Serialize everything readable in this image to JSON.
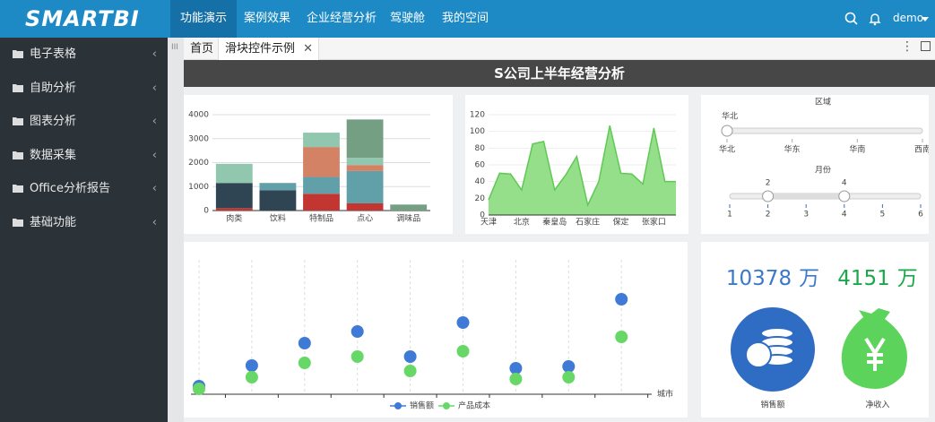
{
  "header": {
    "logo": "SMARTBI",
    "nav": [
      "功能演示",
      "案例效果",
      "企业经营分析",
      "驾驶舱",
      "我的空间"
    ],
    "user": "demo"
  },
  "sidebar": [
    "电子表格",
    "自助分析",
    "图表分析",
    "数据采集",
    "Office分析报告",
    "基础功能"
  ],
  "tabs": [
    "首页",
    "滑块控件示例"
  ],
  "page_title": "S公司上半年经营分析",
  "chart_data": [
    {
      "type": "bar",
      "stacked": true,
      "categories": [
        "肉类",
        "饮料",
        "特制品",
        "点心",
        "调味品"
      ],
      "series": [
        {
          "color": "#c23531",
          "values": [
            100,
            0,
            700,
            300,
            0
          ]
        },
        {
          "color": "#2f4554",
          "values": [
            1050,
            850,
            0,
            0,
            0
          ]
        },
        {
          "color": "#61a0a8",
          "values": [
            0,
            300,
            700,
            1350,
            0
          ]
        },
        {
          "color": "#d48265",
          "values": [
            0,
            0,
            1250,
            250,
            0
          ]
        },
        {
          "color": "#91c7ae",
          "values": [
            800,
            0,
            600,
            300,
            0
          ]
        },
        {
          "color": "#749f83",
          "values": [
            0,
            0,
            0,
            1600,
            250
          ]
        }
      ],
      "ylim": [
        0,
        4000
      ],
      "yticks": [
        0,
        1000,
        2000,
        3000,
        4000
      ],
      "grid": true
    },
    {
      "type": "area",
      "categories": [
        "天津",
        null,
        null,
        "北京",
        null,
        null,
        "秦皇岛",
        null,
        null,
        "石家庄",
        null,
        null,
        "保定",
        null,
        null,
        "张家口",
        null,
        null
      ],
      "values": [
        18,
        50,
        49,
        30,
        85,
        88,
        30,
        48,
        70,
        12,
        40,
        107,
        50,
        49,
        37,
        104,
        40,
        40
      ],
      "color": "#8fdc84",
      "ylim": [
        0,
        120
      ],
      "yticks": [
        0,
        20,
        40,
        60,
        80,
        100,
        120
      ],
      "grid": true
    },
    {
      "type": "scatter",
      "categories": [
        null,
        null,
        null,
        null,
        null,
        null,
        null,
        null,
        null
      ],
      "xlabel": "城市",
      "series": [
        {
          "name": "销售额",
          "color": "#3f7bd6",
          "values": [
            9,
            32,
            57,
            70,
            42,
            80,
            29,
            31,
            106
          ]
        },
        {
          "name": "产品成本",
          "color": "#67d867",
          "values": [
            6,
            19,
            35,
            42,
            26,
            48,
            17,
            19,
            64
          ]
        }
      ],
      "ylim": [
        0,
        150
      ],
      "grid": true
    }
  ],
  "sliders": {
    "region": {
      "title": "区域",
      "value": "华北",
      "options": [
        "华北",
        "华东",
        "华南",
        "西南"
      ]
    },
    "month": {
      "title": "月份",
      "range": [
        2,
        4
      ],
      "ticks": [
        1,
        2,
        3,
        4,
        5,
        6
      ]
    }
  },
  "kpis": [
    {
      "value": 10378,
      "unit": "万",
      "label": "销售额",
      "color": "#3a78c8"
    },
    {
      "value": 4151,
      "unit": "万",
      "label": "净收入",
      "color": "#1aa84a"
    }
  ]
}
